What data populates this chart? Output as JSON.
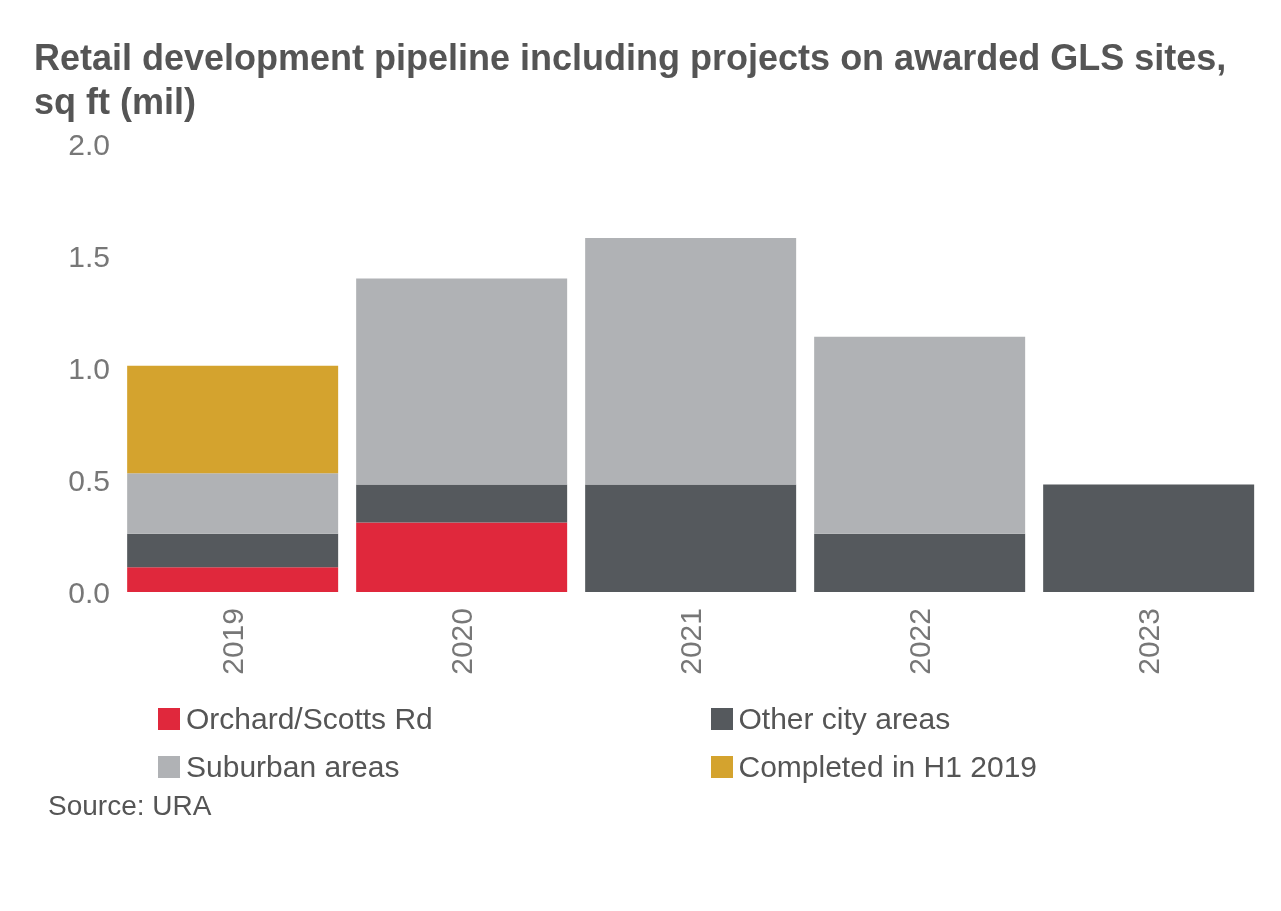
{
  "chart_data": {
    "type": "bar",
    "title": "Retail development pipeline including projects on awarded GLS sites, sq ft (mil)",
    "categories": [
      "2019",
      "2020",
      "2021",
      "2022",
      "2023"
    ],
    "stacked": true,
    "series": [
      {
        "name": "Orchard/Scotts Rd",
        "color": "#e0283c",
        "values": [
          0.11,
          0.31,
          0,
          0,
          0
        ]
      },
      {
        "name": "Other city areas",
        "color": "#55595d",
        "values": [
          0.15,
          0.17,
          0.48,
          0.26,
          0.48
        ]
      },
      {
        "name": "Suburban areas",
        "color": "#b0b2b5",
        "values": [
          0.27,
          0.92,
          1.1,
          0.88,
          0
        ]
      },
      {
        "name": "Completed in H1 2019",
        "color": "#d4a32e",
        "values": [
          0.48,
          0,
          0,
          0,
          0
        ]
      }
    ],
    "ylim": [
      0,
      2
    ],
    "yticks": [
      {
        "value": 0,
        "label": "0.0"
      },
      {
        "value": 0.5,
        "label": "0.5"
      },
      {
        "value": 1,
        "label": "1.0"
      },
      {
        "value": 1.5,
        "label": "1.5"
      },
      {
        "value": 2,
        "label": "2.0"
      }
    ],
    "legend": "bottom",
    "annotations": [
      "Source: URA"
    ]
  }
}
